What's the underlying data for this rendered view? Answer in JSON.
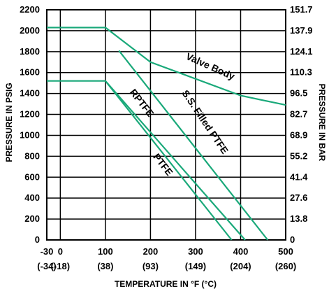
{
  "chart_data": {
    "type": "line",
    "xlabel": "TEMPERATURE IN °F (°C)",
    "ylabel": "PRESSURE IN PSIG",
    "y2label": "PRESSURE IN BAR",
    "xlim": [
      -30,
      500
    ],
    "ylim": [
      0,
      2200
    ],
    "x_ticks": [
      {
        "value": -30,
        "label": "-30",
        "sub": "(-34)"
      },
      {
        "value": 0,
        "label": "0",
        "sub": "(-18)"
      },
      {
        "value": 100,
        "label": "100",
        "sub": "(38)"
      },
      {
        "value": 200,
        "label": "200",
        "sub": "(93)"
      },
      {
        "value": 300,
        "label": "300",
        "sub": "(149)"
      },
      {
        "value": 400,
        "label": "400",
        "sub": "(204)"
      },
      {
        "value": 500,
        "label": "500",
        "sub": "(260)"
      }
    ],
    "y_ticks": [
      0,
      200,
      400,
      600,
      800,
      1000,
      1200,
      1400,
      1600,
      1800,
      2000,
      2200
    ],
    "y2_ticks": [
      {
        "value": 0,
        "label": "0"
      },
      {
        "value": 200,
        "label": "13.8"
      },
      {
        "value": 400,
        "label": "27.6"
      },
      {
        "value": 600,
        "label": "41.4"
      },
      {
        "value": 800,
        "label": "55.2"
      },
      {
        "value": 1000,
        "label": "68.9"
      },
      {
        "value": 1200,
        "label": "82.7"
      },
      {
        "value": 1400,
        "label": "96.5"
      },
      {
        "value": 1600,
        "label": "110.3"
      },
      {
        "value": 1800,
        "label": "124.1"
      },
      {
        "value": 2000,
        "label": "137.9"
      },
      {
        "value": 2200,
        "label": "151.7"
      }
    ],
    "grid": true,
    "line_color": "#1aa97a",
    "series": [
      {
        "name": "Valve Body",
        "points": [
          [
            -30,
            2030
          ],
          [
            100,
            2030
          ],
          [
            200,
            1700
          ],
          [
            400,
            1380
          ],
          [
            500,
            1290
          ]
        ]
      },
      {
        "name": "S.S. Filled PTFE",
        "points": [
          [
            130,
            1810
          ],
          [
            460,
            0
          ]
        ]
      },
      {
        "name": "RPTFE",
        "points": [
          [
            100,
            1520
          ],
          [
            410,
            0
          ]
        ]
      },
      {
        "name": "PTFE",
        "points": [
          [
            -30,
            1520
          ],
          [
            100,
            1520
          ],
          [
            380,
            0
          ]
        ]
      }
    ],
    "annotations": [
      {
        "text": "Valve Body",
        "x": 330,
        "y": 1630,
        "angle": 24
      },
      {
        "text": "RPTFE",
        "x": 175,
        "y": 1290,
        "angle": 52
      },
      {
        "text": "S.S. Filled PTFE",
        "x": 315,
        "y": 1110,
        "angle": 56
      },
      {
        "text": "PTFE",
        "x": 222,
        "y": 700,
        "angle": 52
      }
    ]
  }
}
